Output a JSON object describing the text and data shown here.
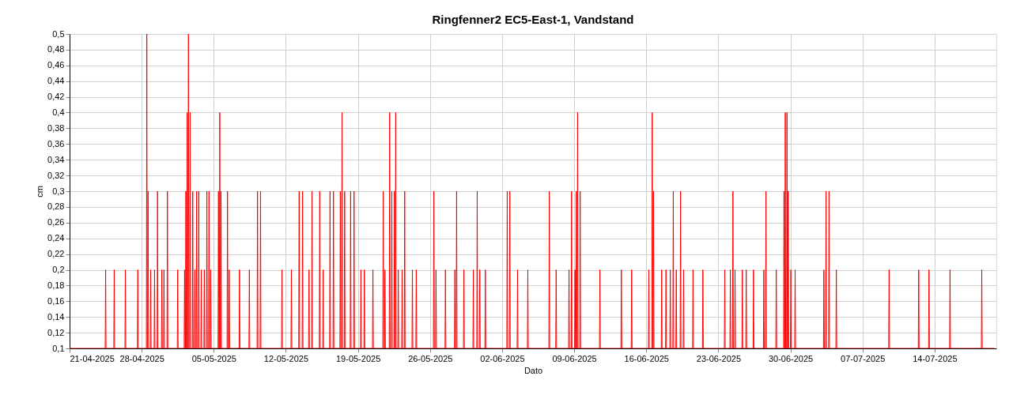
{
  "chart_data": {
    "type": "line",
    "title": "Ringfenner2 EC5-East-1, Vandstand",
    "xlabel": "Dato",
    "ylabel": "cm",
    "xlim": [
      "2025-04-21",
      "2025-07-20"
    ],
    "xticks": [
      {
        "value": "2025-04-21",
        "label": "21-04-2025"
      },
      {
        "value": "2025-04-28",
        "label": "28-04-2025"
      },
      {
        "value": "2025-05-05",
        "label": "05-05-2025"
      },
      {
        "value": "2025-05-12",
        "label": "12-05-2025"
      },
      {
        "value": "2025-05-19",
        "label": "19-05-2025"
      },
      {
        "value": "2025-05-26",
        "label": "26-05-2025"
      },
      {
        "value": "2025-06-02",
        "label": "02-06-2025"
      },
      {
        "value": "2025-06-09",
        "label": "09-06-2025"
      },
      {
        "value": "2025-06-16",
        "label": "16-06-2025"
      },
      {
        "value": "2025-06-23",
        "label": "23-06-2025"
      },
      {
        "value": "2025-06-30",
        "label": "30-06-2025"
      },
      {
        "value": "2025-07-07",
        "label": "07-07-2025"
      },
      {
        "value": "2025-07-14",
        "label": "14-07-2025"
      }
    ],
    "ylim": [
      0.1,
      0.5
    ],
    "yticks": [
      {
        "value": 0.1,
        "label": "0,1"
      },
      {
        "value": 0.12,
        "label": "0,12"
      },
      {
        "value": 0.14,
        "label": "0,14"
      },
      {
        "value": 0.16,
        "label": "0,16"
      },
      {
        "value": 0.18,
        "label": "0,18"
      },
      {
        "value": 0.2,
        "label": "0,2"
      },
      {
        "value": 0.22,
        "label": "0,22"
      },
      {
        "value": 0.24,
        "label": "0,24"
      },
      {
        "value": 0.26,
        "label": "0,26"
      },
      {
        "value": 0.28,
        "label": "0,28"
      },
      {
        "value": 0.3,
        "label": "0,3"
      },
      {
        "value": 0.32,
        "label": "0,32"
      },
      {
        "value": 0.34,
        "label": "0,34"
      },
      {
        "value": 0.36,
        "label": "0,36"
      },
      {
        "value": 0.38,
        "label": "0,38"
      },
      {
        "value": 0.4,
        "label": "0,4"
      },
      {
        "value": 0.42,
        "label": "0,42"
      },
      {
        "value": 0.44,
        "label": "0,44"
      },
      {
        "value": 0.46,
        "label": "0,46"
      },
      {
        "value": 0.48,
        "label": "0,48"
      },
      {
        "value": 0.5,
        "label": "0,5"
      }
    ],
    "grid": true,
    "marker": "none",
    "line_style": "solid",
    "series": [
      {
        "color": "#ff0000",
        "x": [
          "2025-04-21T00:00",
          "2025-04-24T11:00",
          "2025-04-24T12:00",
          "2025-04-24T13:00",
          "2025-04-25T07:00",
          "2025-04-25T08:00",
          "2025-04-25T09:00",
          "2025-04-26T09:00",
          "2025-04-26T10:00",
          "2025-04-26T11:00",
          "2025-04-27T14:00",
          "2025-04-27T15:00",
          "2025-04-27T16:00",
          "2025-04-28T11:00",
          "2025-04-28T12:00",
          "2025-04-28T13:00",
          "2025-04-28T14:00",
          "2025-04-28T15:00",
          "2025-04-28T16:00",
          "2025-04-28T20:00",
          "2025-04-28T21:00",
          "2025-04-28T22:00",
          "2025-04-29T05:00",
          "2025-04-29T06:00",
          "2025-04-29T07:00",
          "2025-04-29T12:00",
          "2025-04-29T13:00",
          "2025-04-29T14:00",
          "2025-04-29T22:00",
          "2025-04-29T23:00",
          "2025-04-30T00:00",
          "2025-04-30T03:00",
          "2025-04-30T04:00",
          "2025-04-30T05:00",
          "2025-04-30T11:00",
          "2025-04-30T12:00",
          "2025-04-30T13:00",
          "2025-05-01T11:00",
          "2025-05-01T12:00",
          "2025-05-01T13:00",
          "2025-05-02T03:00",
          "2025-05-02T04:00",
          "2025-05-02T05:00",
          "2025-05-02T06:00",
          "2025-05-02T07:00",
          "2025-05-02T08:00",
          "2025-05-02T09:00",
          "2025-05-02T10:00",
          "2025-05-02T11:00",
          "2025-05-02T12:00",
          "2025-05-02T13:00",
          "2025-05-02T14:00",
          "2025-05-02T16:00",
          "2025-05-02T17:00",
          "2025-05-02T18:00",
          "2025-05-02T22:00",
          "2025-05-02T23:00",
          "2025-05-03T00:00",
          "2025-05-03T03:00",
          "2025-05-03T04:00",
          "2025-05-03T05:00",
          "2025-05-03T07:00",
          "2025-05-03T08:00",
          "2025-05-03T09:00",
          "2025-05-03T12:00",
          "2025-05-03T13:00",
          "2025-05-03T14:00",
          "2025-05-03T18:00",
          "2025-05-03T19:00",
          "2025-05-03T20:00",
          "2025-05-04T01:00",
          "2025-05-04T02:00",
          "2025-05-04T03:00",
          "2025-05-04T07:00",
          "2025-05-04T08:00",
          "2025-05-04T09:00",
          "2025-05-04T12:00",
          "2025-05-04T13:00",
          "2025-05-04T14:00",
          "2025-05-04T16:00",
          "2025-05-04T17:00",
          "2025-05-04T18:00",
          "2025-05-05T10:00",
          "2025-05-05T11:00",
          "2025-05-05T12:00",
          "2025-05-05T13:00",
          "2025-05-05T14:00",
          "2025-05-05T15:00",
          "2025-05-05T16:00",
          "2025-05-05T17:00",
          "2025-05-05T18:00",
          "2025-05-06T07:00",
          "2025-05-06T08:00",
          "2025-05-06T09:00",
          "2025-05-06T11:00",
          "2025-05-06T12:00",
          "2025-05-06T13:00",
          "2025-05-07T11:00",
          "2025-05-07T12:00",
          "2025-05-07T13:00",
          "2025-05-08T10:00",
          "2025-05-08T11:00",
          "2025-05-08T12:00",
          "2025-05-09T05:00",
          "2025-05-09T06:00",
          "2025-05-09T07:00",
          "2025-05-09T12:00",
          "2025-05-09T13:00",
          "2025-05-09T14:00",
          "2025-05-11T14:00",
          "2025-05-11T15:00",
          "2025-05-11T16:00",
          "2025-05-12T12:00",
          "2025-05-12T13:00",
          "2025-05-12T14:00",
          "2025-05-13T06:00",
          "2025-05-13T07:00",
          "2025-05-13T08:00",
          "2025-05-13T14:00",
          "2025-05-13T15:00",
          "2025-05-13T16:00",
          "2025-05-14T05:00",
          "2025-05-14T06:00",
          "2025-05-14T07:00",
          "2025-05-14T12:00",
          "2025-05-14T13:00",
          "2025-05-14T14:00",
          "2025-05-15T06:00",
          "2025-05-15T07:00",
          "2025-05-15T08:00",
          "2025-05-15T14:00",
          "2025-05-15T15:00",
          "2025-05-15T16:00",
          "2025-05-16T06:00",
          "2025-05-16T07:00",
          "2025-05-16T08:00",
          "2025-05-16T14:00",
          "2025-05-16T15:00",
          "2025-05-16T16:00",
          "2025-05-17T06:00",
          "2025-05-17T07:00",
          "2025-05-17T08:00",
          "2025-05-17T10:00",
          "2025-05-17T11:00",
          "2025-05-17T12:00",
          "2025-05-17T16:00",
          "2025-05-17T17:00",
          "2025-05-17T18:00",
          "2025-05-18T06:00",
          "2025-05-18T07:00",
          "2025-05-18T08:00",
          "2025-05-18T14:00",
          "2025-05-18T15:00",
          "2025-05-18T16:00",
          "2025-05-19T06:00",
          "2025-05-19T07:00",
          "2025-05-19T08:00",
          "2025-05-19T14:00",
          "2025-05-19T15:00",
          "2025-05-19T16:00",
          "2025-05-20T10:00",
          "2025-05-20T11:00",
          "2025-05-20T12:00",
          "2025-05-21T10:00",
          "2025-05-21T11:00",
          "2025-05-21T12:00",
          "2025-05-21T14:00",
          "2025-05-21T15:00",
          "2025-05-21T16:00",
          "2025-05-22T01:00",
          "2025-05-22T02:00",
          "2025-05-22T03:00",
          "2025-05-22T06:00",
          "2025-05-22T07:00",
          "2025-05-22T08:00",
          "2025-05-22T12:00",
          "2025-05-22T13:00",
          "2025-05-22T14:00",
          "2025-05-22T15:00",
          "2025-05-22T16:00",
          "2025-05-22T17:00",
          "2025-05-22T21:00",
          "2025-05-22T22:00",
          "2025-05-22T23:00",
          "2025-05-23T06:00",
          "2025-05-23T07:00",
          "2025-05-23T08:00",
          "2025-05-23T12:00",
          "2025-05-23T13:00",
          "2025-05-23T14:00",
          "2025-05-24T06:00",
          "2025-05-24T07:00",
          "2025-05-24T08:00",
          "2025-05-24T15:00",
          "2025-05-24T16:00",
          "2025-05-24T17:00",
          "2025-05-26T08:00",
          "2025-05-26T09:00",
          "2025-05-26T10:00",
          "2025-05-26T13:00",
          "2025-05-26T14:00",
          "2025-05-26T15:00",
          "2025-05-27T11:00",
          "2025-05-27T12:00",
          "2025-05-27T13:00",
          "2025-05-28T09:00",
          "2025-05-28T10:00",
          "2025-05-28T11:00",
          "2025-05-28T13:00",
          "2025-05-28T14:00",
          "2025-05-28T15:00",
          "2025-05-29T06:00",
          "2025-05-29T07:00",
          "2025-05-29T08:00",
          "2025-05-30T04:00",
          "2025-05-30T05:00",
          "2025-05-30T06:00",
          "2025-05-30T13:00",
          "2025-05-30T14:00",
          "2025-05-30T15:00",
          "2025-05-30T19:00",
          "2025-05-30T20:00",
          "2025-05-30T21:00",
          "2025-05-31T08:00",
          "2025-05-31T09:00",
          "2025-05-31T10:00",
          "2025-06-02T11:00",
          "2025-06-02T12:00",
          "2025-06-02T13:00",
          "2025-06-02T17:00",
          "2025-06-02T18:00",
          "2025-06-02T19:00",
          "2025-06-03T11:00",
          "2025-06-03T12:00",
          "2025-06-03T13:00",
          "2025-06-04T11:00",
          "2025-06-04T12:00",
          "2025-06-04T13:00",
          "2025-06-06T13:00",
          "2025-06-06T14:00",
          "2025-06-06T15:00",
          "2025-06-07T05:00",
          "2025-06-07T06:00",
          "2025-06-07T07:00",
          "2025-06-08T11:00",
          "2025-06-08T12:00",
          "2025-06-08T13:00",
          "2025-06-08T17:00",
          "2025-06-08T18:00",
          "2025-06-08T19:00",
          "2025-06-09T01:00",
          "2025-06-09T02:00",
          "2025-06-09T03:00",
          "2025-06-09T04:00",
          "2025-06-09T05:00",
          "2025-06-09T06:00",
          "2025-06-09T07:00",
          "2025-06-09T08:00",
          "2025-06-09T09:00",
          "2025-06-09T13:00",
          "2025-06-09T14:00",
          "2025-06-09T15:00",
          "2025-06-11T11:00",
          "2025-06-11T12:00",
          "2025-06-11T13:00",
          "2025-06-13T13:00",
          "2025-06-13T14:00",
          "2025-06-13T15:00",
          "2025-06-14T13:00",
          "2025-06-14T14:00",
          "2025-06-14T15:00",
          "2025-06-16T05:00",
          "2025-06-16T06:00",
          "2025-06-16T07:00",
          "2025-06-16T13:00",
          "2025-06-16T14:00",
          "2025-06-16T15:00",
          "2025-06-16T16:00",
          "2025-06-16T17:00",
          "2025-06-16T18:00",
          "2025-06-17T11:00",
          "2025-06-17T12:00",
          "2025-06-17T13:00",
          "2025-06-17T21:00",
          "2025-06-17T22:00",
          "2025-06-17T23:00",
          "2025-06-18T07:00",
          "2025-06-18T08:00",
          "2025-06-18T09:00",
          "2025-06-18T14:00",
          "2025-06-18T15:00",
          "2025-06-18T16:00",
          "2025-06-18T21:00",
          "2025-06-18T22:00",
          "2025-06-18T23:00",
          "2025-06-19T07:00",
          "2025-06-19T08:00",
          "2025-06-19T09:00",
          "2025-06-19T14:00",
          "2025-06-19T15:00",
          "2025-06-19T16:00",
          "2025-06-20T12:00",
          "2025-06-20T13:00",
          "2025-06-20T14:00",
          "2025-06-21T11:00",
          "2025-06-21T12:00",
          "2025-06-21T13:00",
          "2025-06-23T14:00",
          "2025-06-23T15:00",
          "2025-06-23T16:00",
          "2025-06-24T03:00",
          "2025-06-24T04:00",
          "2025-06-24T05:00",
          "2025-06-24T09:00",
          "2025-06-24T10:00",
          "2025-06-24T11:00",
          "2025-06-24T14:00",
          "2025-06-24T15:00",
          "2025-06-24T16:00",
          "2025-06-25T07:00",
          "2025-06-25T08:00",
          "2025-06-25T09:00",
          "2025-06-25T16:00",
          "2025-06-25T17:00",
          "2025-06-25T18:00",
          "2025-06-26T09:00",
          "2025-06-26T10:00",
          "2025-06-26T11:00",
          "2025-06-27T09:00",
          "2025-06-27T10:00",
          "2025-06-27T11:00",
          "2025-06-27T14:00",
          "2025-06-27T15:00",
          "2025-06-27T16:00",
          "2025-06-28T14:00",
          "2025-06-28T15:00",
          "2025-06-28T16:00",
          "2025-06-29T08:00",
          "2025-06-29T09:00",
          "2025-06-29T10:00",
          "2025-06-29T11:00",
          "2025-06-29T12:00",
          "2025-06-29T13:00",
          "2025-06-29T15:00",
          "2025-06-29T16:00",
          "2025-06-29T17:00",
          "2025-06-29T18:00",
          "2025-06-29T19:00",
          "2025-06-29T20:00",
          "2025-06-30T00:00",
          "2025-06-30T01:00",
          "2025-06-30T02:00",
          "2025-06-30T10:00",
          "2025-06-30T11:00",
          "2025-06-30T12:00",
          "2025-07-03T05:00",
          "2025-07-03T06:00",
          "2025-07-03T07:00",
          "2025-07-03T10:00",
          "2025-07-03T11:00",
          "2025-07-03T12:00",
          "2025-07-03T17:00",
          "2025-07-03T18:00",
          "2025-07-03T19:00",
          "2025-07-04T10:00",
          "2025-07-04T11:00",
          "2025-07-04T12:00",
          "2025-07-09T13:00",
          "2025-07-09T14:00",
          "2025-07-09T15:00",
          "2025-07-12T10:00",
          "2025-07-12T11:00",
          "2025-07-12T12:00",
          "2025-07-13T10:00",
          "2025-07-13T11:00",
          "2025-07-13T12:00",
          "2025-07-15T11:00",
          "2025-07-15T12:00",
          "2025-07-15T13:00",
          "2025-07-18T13:00",
          "2025-07-18T14:00",
          "2025-07-18T15:00",
          "2025-07-19T20:00"
        ],
        "values": [
          0.1,
          0.1,
          0.2,
          0.1,
          0.1,
          0.2,
          0.1,
          0.1,
          0.2,
          0.1,
          0.1,
          0.2,
          0.1,
          0.1,
          0.5,
          0.1,
          0.1,
          0.3,
          0.1,
          0.1,
          0.2,
          0.1,
          0.1,
          0.2,
          0.1,
          0.1,
          0.3,
          0.1,
          0.1,
          0.2,
          0.1,
          0.1,
          0.2,
          0.1,
          0.1,
          0.3,
          0.1,
          0.1,
          0.2,
          0.1,
          0.1,
          0.2,
          0.1,
          0.1,
          0.3,
          0.1,
          0.1,
          0.4,
          0.1,
          0.1,
          0.5,
          0.1,
          0.1,
          0.4,
          0.1,
          0.1,
          0.3,
          0.1,
          0.1,
          0.2,
          0.1,
          0.1,
          0.3,
          0.1,
          0.1,
          0.3,
          0.1,
          0.1,
          0.2,
          0.1,
          0.1,
          0.2,
          0.1,
          0.1,
          0.3,
          0.1,
          0.1,
          0.3,
          0.1,
          0.1,
          0.2,
          0.1,
          0.1,
          0.3,
          0.1,
          0.1,
          0.4,
          0.1,
          0.1,
          0.3,
          0.1,
          0.1,
          0.3,
          0.1,
          0.1,
          0.2,
          0.1,
          0.1,
          0.2,
          0.1,
          0.1,
          0.2,
          0.1,
          0.1,
          0.3,
          0.1,
          0.1,
          0.3,
          0.1,
          0.1,
          0.2,
          0.1,
          0.1,
          0.2,
          0.1,
          0.1,
          0.3,
          0.1,
          0.1,
          0.3,
          0.1,
          0.1,
          0.2,
          0.1,
          0.1,
          0.3,
          0.1,
          0.1,
          0.3,
          0.1,
          0.1,
          0.2,
          0.1,
          0.1,
          0.3,
          0.1,
          0.1,
          0.3,
          0.1,
          0.1,
          0.3,
          0.1,
          0.1,
          0.4,
          0.1,
          0.1,
          0.3,
          0.1,
          0.1,
          0.3,
          0.1,
          0.1,
          0.3,
          0.1,
          0.1,
          0.2,
          0.1,
          0.1,
          0.2,
          0.1,
          0.1,
          0.2,
          0.1,
          0.1,
          0.3,
          0.1,
          0.1,
          0.2,
          0.1,
          0.1,
          0.4,
          0.1,
          0.1,
          0.3,
          0.1,
          0.1,
          0.3,
          0.1,
          0.1,
          0.4,
          0.1,
          0.1,
          0.2,
          0.1,
          0.1,
          0.2,
          0.1,
          0.1,
          0.3,
          0.1,
          0.1,
          0.2,
          0.1,
          0.1,
          0.2,
          0.1,
          0.1,
          0.3,
          0.1,
          0.1,
          0.2,
          0.1,
          0.1,
          0.2,
          0.1,
          0.1,
          0.2,
          0.1,
          0.1,
          0.3,
          0.1,
          0.1,
          0.2,
          0.1,
          0.1,
          0.2,
          0.1,
          0.1,
          0.3,
          0.1,
          0.1,
          0.2,
          0.1,
          0.1,
          0.2,
          0.1,
          0.1,
          0.3,
          0.1,
          0.1,
          0.3,
          0.1,
          0.1,
          0.2,
          0.1,
          0.1,
          0.2,
          0.1,
          0.1,
          0.3,
          0.1,
          0.1,
          0.2,
          0.1,
          0.1,
          0.2,
          0.1,
          0.1,
          0.3,
          0.1,
          0.1,
          0.2,
          0.1,
          0.1,
          0.3,
          0.1,
          0.1,
          0.4,
          0.1,
          0.1,
          0.3,
          0.1,
          0.1,
          0.2,
          0.1,
          0.1,
          0.2,
          0.1,
          0.1,
          0.2,
          0.1,
          0.1,
          0.2,
          0.1,
          0.1,
          0.4,
          0.1,
          0.1,
          0.3,
          0.1,
          0.1,
          0.2,
          0.1,
          0.1,
          0.2,
          0.1,
          0.1,
          0.2,
          0.1,
          0.1,
          0.3,
          0.1,
          0.1,
          0.2,
          0.1,
          0.1,
          0.3,
          0.1,
          0.1,
          0.2,
          0.1,
          0.1,
          0.2,
          0.1,
          0.1,
          0.2,
          0.1,
          0.1,
          0.2,
          0.1,
          0.1,
          0.2,
          0.1,
          0.1,
          0.3,
          0.1,
          0.1,
          0.2,
          0.1,
          0.1,
          0.2,
          0.1,
          0.1,
          0.2,
          0.1,
          0.1,
          0.2,
          0.1,
          0.1,
          0.2,
          0.1,
          0.1,
          0.3,
          0.1,
          0.1,
          0.2,
          0.1,
          0.1,
          0.3,
          0.1,
          0.1,
          0.4,
          0.1,
          0.1,
          0.4,
          0.1,
          0.1,
          0.3,
          0.1,
          0.1,
          0.2,
          0.1,
          0.1,
          0.2,
          0.1,
          0.1,
          0.2,
          0.1,
          0.1,
          0.3,
          0.1,
          0.1,
          0.3,
          0.1,
          0.1,
          0.2,
          0.1,
          0.1,
          0.2,
          0.1,
          0.1,
          0.2,
          0.1,
          0.1,
          0.2,
          0.1,
          0.1,
          0.2,
          0.1,
          0.1,
          0.2,
          0.1,
          0.1
        ]
      }
    ]
  }
}
